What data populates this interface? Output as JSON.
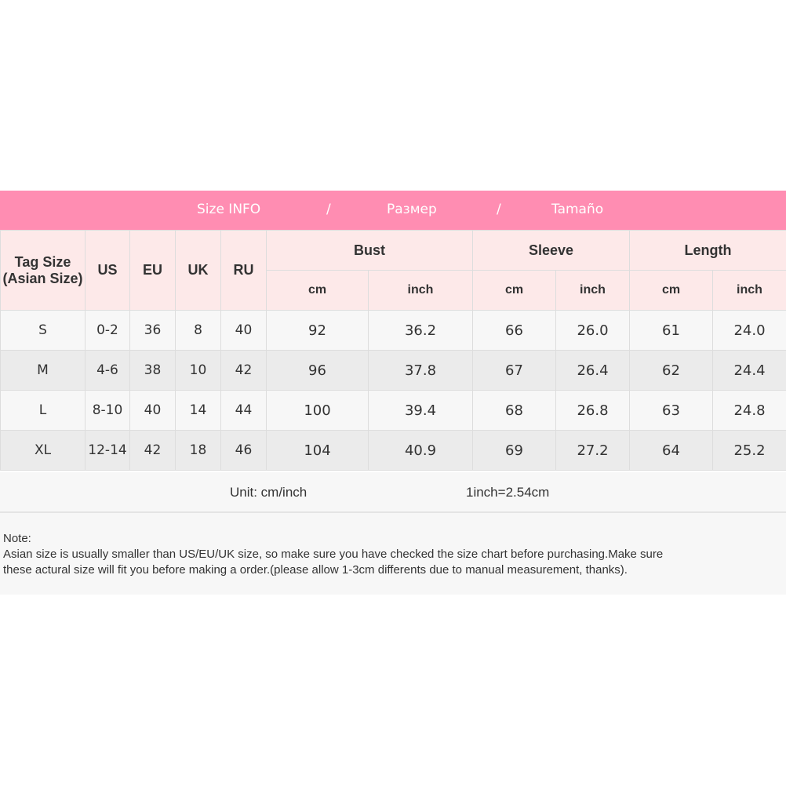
{
  "banner": {
    "title_en": "Size INFO",
    "sep": "/",
    "title_ru": "Размер",
    "title_es": "Tamaño"
  },
  "header": {
    "tag_size": "Tag Size",
    "asian_size": "(Asian Size)",
    "us": "US",
    "eu": "EU",
    "uk": "UK",
    "ru": "RU",
    "bust": "Bust",
    "sleeve": "Sleeve",
    "length": "Length",
    "cm": "cm",
    "inch": "inch"
  },
  "rows": [
    [
      "S",
      "0-2",
      "36",
      "8",
      "40",
      "92",
      "36.2",
      "66",
      "26.0",
      "61",
      "24.0"
    ],
    [
      "M",
      "4-6",
      "38",
      "10",
      "42",
      "96",
      "37.8",
      "67",
      "26.4",
      "62",
      "24.4"
    ],
    [
      "L",
      "8-10",
      "40",
      "14",
      "44",
      "100",
      "39.4",
      "68",
      "26.8",
      "63",
      "24.8"
    ],
    [
      "XL",
      "12-14",
      "42",
      "18",
      "46",
      "104",
      "40.9",
      "69",
      "27.2",
      "64",
      "25.2"
    ]
  ],
  "unit": {
    "label": "Unit: cm/inch",
    "conversion": "1inch=2.54cm"
  },
  "note": {
    "title": "Note:",
    "line1": "Asian size is usually smaller than US/EU/UK size, so make sure you have checked the size chart before purchasing.Make sure",
    "line2": "these actural size will fit you before making a order.(please allow 1-3cm differents due to manual measurement, thanks)."
  },
  "colors": {
    "banner": "#ff8db2",
    "header_bg": "#fde9e9"
  }
}
